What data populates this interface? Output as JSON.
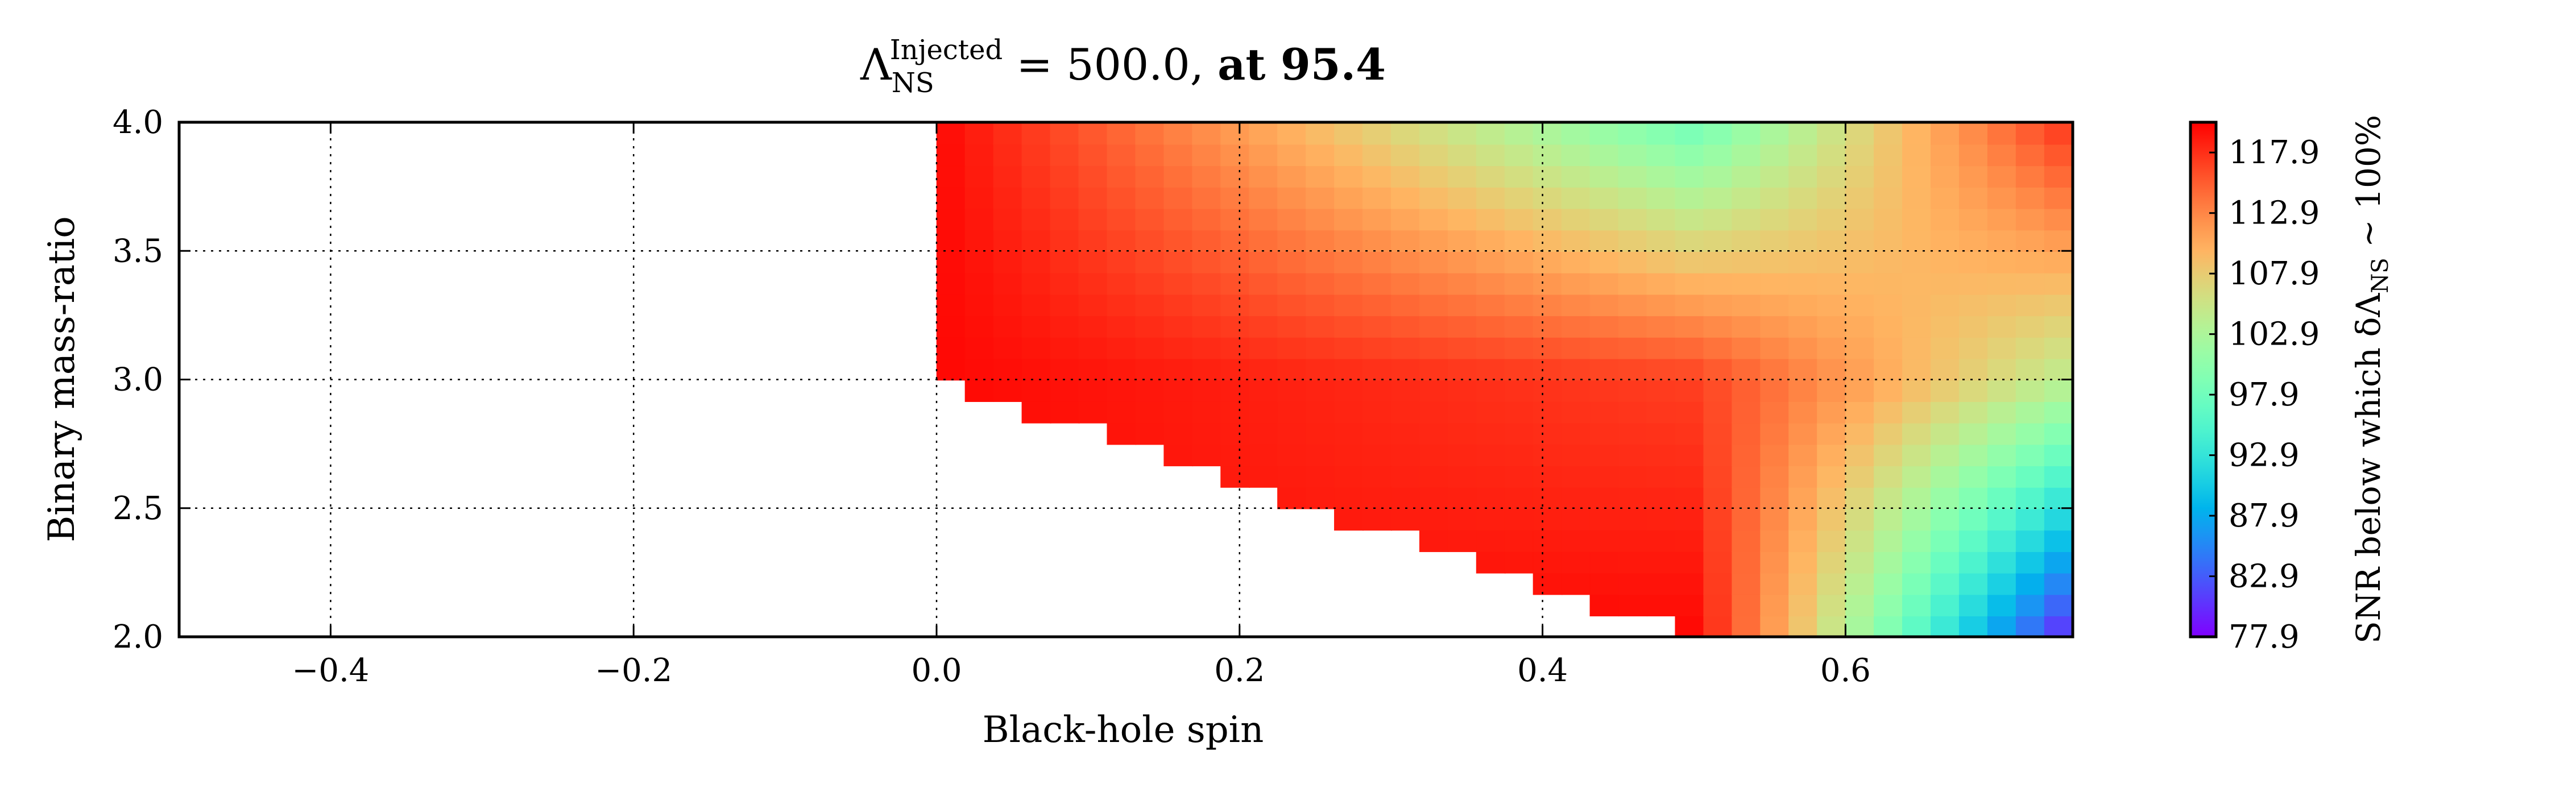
{
  "chart_data": {
    "type": "heatmap",
    "title": {
      "symbol": "Λ",
      "superscript": "Injected",
      "subscript": "NS",
      "value_text": " = 500.0, ",
      "bold_text": "at 95.4"
    },
    "xlabel": "Black-hole spin",
    "ylabel": "Binary mass-ratio",
    "xlim": [
      -0.5,
      0.75
    ],
    "ylim": [
      2.0,
      4.0
    ],
    "x_ticks": [
      -0.4,
      -0.2,
      0.0,
      0.2,
      0.4,
      0.6
    ],
    "x_tick_labels": [
      "−0.4",
      "−0.2",
      "0.0",
      "0.2",
      "0.4",
      "0.6"
    ],
    "y_ticks": [
      2.0,
      2.5,
      3.0,
      3.5,
      4.0
    ],
    "y_tick_labels": [
      "2.0",
      "2.5",
      "3.0",
      "3.5",
      "4.0"
    ],
    "grid": true,
    "colorbar": {
      "label_prefix": "SNR below which δΛ",
      "label_subscript": "NS",
      "label_suffix": " ∼ 100%",
      "vmin": 77.9,
      "vmax": 120.4,
      "ticks": [
        77.9,
        82.9,
        87.9,
        92.9,
        97.9,
        102.9,
        107.9,
        112.9,
        117.9
      ],
      "tick_labels": [
        "77.9",
        "82.9",
        "87.9",
        "92.9",
        "97.9",
        "102.9",
        "107.9",
        "112.9",
        "117.9"
      ],
      "colormap": "rainbow"
    },
    "spins": [
      0.0,
      0.5,
      0.75
    ],
    "mass_ratios": [
      2.0,
      3.0,
      4.0
    ],
    "snr_grid": [
      [
        null,
        120.0,
        79.0
      ],
      [
        120.0,
        117.0,
        104.0
      ],
      [
        120.0,
        98.0,
        118.0
      ]
    ]
  }
}
